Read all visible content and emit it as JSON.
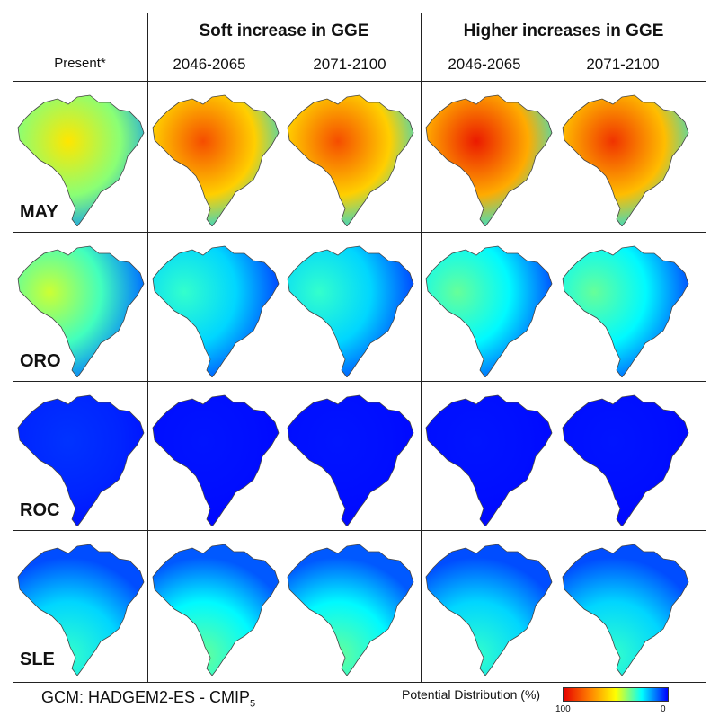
{
  "header": {
    "present": "Present*",
    "scenario_soft": "Soft increase in GGE",
    "scenario_high": "Higher increases in GGE",
    "periods": [
      "2046-2065",
      "2071-2100",
      "2046-2065",
      "2071-2100"
    ]
  },
  "rows": [
    {
      "label": "MAY",
      "suitability": [
        0.55,
        0.85,
        0.85,
        0.95,
        0.9
      ]
    },
    {
      "label": "ORO",
      "suitability": [
        0.45,
        0.3,
        0.3,
        0.35,
        0.35
      ]
    },
    {
      "label": "ROC",
      "suitability": [
        0.05,
        0.02,
        0.02,
        0.02,
        0.02
      ]
    },
    {
      "label": "SLE",
      "suitability": [
        0.3,
        0.35,
        0.35,
        0.3,
        0.3
      ]
    }
  ],
  "footer": {
    "gcm_text": "GCM: HADGEM2-ES  -  CMIP",
    "gcm_sub": "5",
    "legend_title": "Potential Distribution (%)",
    "legend_max": "100",
    "legend_min": "0"
  },
  "colors": {
    "scale": [
      "#e60000",
      "#ff8000",
      "#ffff00",
      "#00ffff",
      "#0000ff"
    ]
  }
}
